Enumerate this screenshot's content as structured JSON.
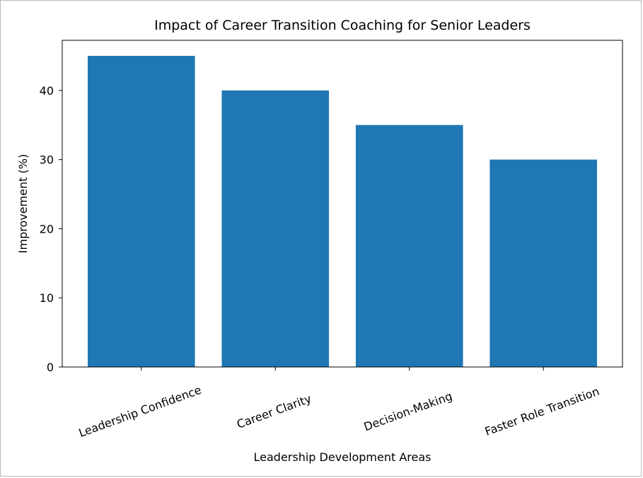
{
  "chart_data": {
    "type": "bar",
    "title": "Impact of Career Transition Coaching for Senior Leaders",
    "xlabel": "Leadership Development Areas",
    "ylabel": "Improvement (%)",
    "categories": [
      "Leadership Confidence",
      "Career Clarity",
      "Decision-Making",
      "Faster Role Transition"
    ],
    "values": [
      45,
      40,
      35,
      30
    ],
    "color": "#1f77b4",
    "ylim": [
      0,
      47.25
    ],
    "yticks": [
      0,
      10,
      20,
      30,
      40
    ],
    "grid": false
  }
}
